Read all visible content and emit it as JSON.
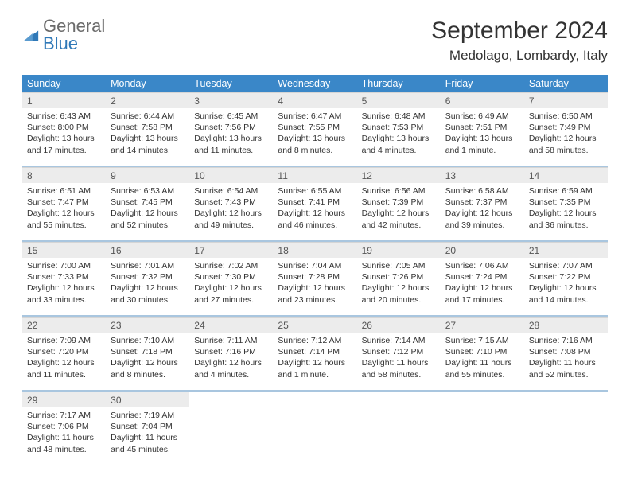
{
  "brand": {
    "part1": "General",
    "part2": "Blue"
  },
  "title": "September 2024",
  "location": "Medolago, Lombardy, Italy",
  "colors": {
    "header_bar": "#3a87c8",
    "daynum_bg": "#ececec",
    "week_divider": "#a9c6df",
    "logo_blue": "#2f78b7",
    "logo_gray": "#6b6b6b",
    "page_bg": "#ffffff",
    "text": "#333333"
  },
  "fonts": {
    "title_size": 30,
    "location_size": 17,
    "dow_size": 12.5,
    "daynum_size": 12,
    "body_size": 10.5
  },
  "dow": [
    "Sunday",
    "Monday",
    "Tuesday",
    "Wednesday",
    "Thursday",
    "Friday",
    "Saturday"
  ],
  "weeks": [
    {
      "nums": [
        "1",
        "2",
        "3",
        "4",
        "5",
        "6",
        "7"
      ],
      "cells": [
        {
          "sunrise": "Sunrise: 6:43 AM",
          "sunset": "Sunset: 8:00 PM",
          "day1": "Daylight: 13 hours",
          "day2": "and 17 minutes."
        },
        {
          "sunrise": "Sunrise: 6:44 AM",
          "sunset": "Sunset: 7:58 PM",
          "day1": "Daylight: 13 hours",
          "day2": "and 14 minutes."
        },
        {
          "sunrise": "Sunrise: 6:45 AM",
          "sunset": "Sunset: 7:56 PM",
          "day1": "Daylight: 13 hours",
          "day2": "and 11 minutes."
        },
        {
          "sunrise": "Sunrise: 6:47 AM",
          "sunset": "Sunset: 7:55 PM",
          "day1": "Daylight: 13 hours",
          "day2": "and 8 minutes."
        },
        {
          "sunrise": "Sunrise: 6:48 AM",
          "sunset": "Sunset: 7:53 PM",
          "day1": "Daylight: 13 hours",
          "day2": "and 4 minutes."
        },
        {
          "sunrise": "Sunrise: 6:49 AM",
          "sunset": "Sunset: 7:51 PM",
          "day1": "Daylight: 13 hours",
          "day2": "and 1 minute."
        },
        {
          "sunrise": "Sunrise: 6:50 AM",
          "sunset": "Sunset: 7:49 PM",
          "day1": "Daylight: 12 hours",
          "day2": "and 58 minutes."
        }
      ]
    },
    {
      "nums": [
        "8",
        "9",
        "10",
        "11",
        "12",
        "13",
        "14"
      ],
      "cells": [
        {
          "sunrise": "Sunrise: 6:51 AM",
          "sunset": "Sunset: 7:47 PM",
          "day1": "Daylight: 12 hours",
          "day2": "and 55 minutes."
        },
        {
          "sunrise": "Sunrise: 6:53 AM",
          "sunset": "Sunset: 7:45 PM",
          "day1": "Daylight: 12 hours",
          "day2": "and 52 minutes."
        },
        {
          "sunrise": "Sunrise: 6:54 AM",
          "sunset": "Sunset: 7:43 PM",
          "day1": "Daylight: 12 hours",
          "day2": "and 49 minutes."
        },
        {
          "sunrise": "Sunrise: 6:55 AM",
          "sunset": "Sunset: 7:41 PM",
          "day1": "Daylight: 12 hours",
          "day2": "and 46 minutes."
        },
        {
          "sunrise": "Sunrise: 6:56 AM",
          "sunset": "Sunset: 7:39 PM",
          "day1": "Daylight: 12 hours",
          "day2": "and 42 minutes."
        },
        {
          "sunrise": "Sunrise: 6:58 AM",
          "sunset": "Sunset: 7:37 PM",
          "day1": "Daylight: 12 hours",
          "day2": "and 39 minutes."
        },
        {
          "sunrise": "Sunrise: 6:59 AM",
          "sunset": "Sunset: 7:35 PM",
          "day1": "Daylight: 12 hours",
          "day2": "and 36 minutes."
        }
      ]
    },
    {
      "nums": [
        "15",
        "16",
        "17",
        "18",
        "19",
        "20",
        "21"
      ],
      "cells": [
        {
          "sunrise": "Sunrise: 7:00 AM",
          "sunset": "Sunset: 7:33 PM",
          "day1": "Daylight: 12 hours",
          "day2": "and 33 minutes."
        },
        {
          "sunrise": "Sunrise: 7:01 AM",
          "sunset": "Sunset: 7:32 PM",
          "day1": "Daylight: 12 hours",
          "day2": "and 30 minutes."
        },
        {
          "sunrise": "Sunrise: 7:02 AM",
          "sunset": "Sunset: 7:30 PM",
          "day1": "Daylight: 12 hours",
          "day2": "and 27 minutes."
        },
        {
          "sunrise": "Sunrise: 7:04 AM",
          "sunset": "Sunset: 7:28 PM",
          "day1": "Daylight: 12 hours",
          "day2": "and 23 minutes."
        },
        {
          "sunrise": "Sunrise: 7:05 AM",
          "sunset": "Sunset: 7:26 PM",
          "day1": "Daylight: 12 hours",
          "day2": "and 20 minutes."
        },
        {
          "sunrise": "Sunrise: 7:06 AM",
          "sunset": "Sunset: 7:24 PM",
          "day1": "Daylight: 12 hours",
          "day2": "and 17 minutes."
        },
        {
          "sunrise": "Sunrise: 7:07 AM",
          "sunset": "Sunset: 7:22 PM",
          "day1": "Daylight: 12 hours",
          "day2": "and 14 minutes."
        }
      ]
    },
    {
      "nums": [
        "22",
        "23",
        "24",
        "25",
        "26",
        "27",
        "28"
      ],
      "cells": [
        {
          "sunrise": "Sunrise: 7:09 AM",
          "sunset": "Sunset: 7:20 PM",
          "day1": "Daylight: 12 hours",
          "day2": "and 11 minutes."
        },
        {
          "sunrise": "Sunrise: 7:10 AM",
          "sunset": "Sunset: 7:18 PM",
          "day1": "Daylight: 12 hours",
          "day2": "and 8 minutes."
        },
        {
          "sunrise": "Sunrise: 7:11 AM",
          "sunset": "Sunset: 7:16 PM",
          "day1": "Daylight: 12 hours",
          "day2": "and 4 minutes."
        },
        {
          "sunrise": "Sunrise: 7:12 AM",
          "sunset": "Sunset: 7:14 PM",
          "day1": "Daylight: 12 hours",
          "day2": "and 1 minute."
        },
        {
          "sunrise": "Sunrise: 7:14 AM",
          "sunset": "Sunset: 7:12 PM",
          "day1": "Daylight: 11 hours",
          "day2": "and 58 minutes."
        },
        {
          "sunrise": "Sunrise: 7:15 AM",
          "sunset": "Sunset: 7:10 PM",
          "day1": "Daylight: 11 hours",
          "day2": "and 55 minutes."
        },
        {
          "sunrise": "Sunrise: 7:16 AM",
          "sunset": "Sunset: 7:08 PM",
          "day1": "Daylight: 11 hours",
          "day2": "and 52 minutes."
        }
      ]
    },
    {
      "nums": [
        "29",
        "30",
        "",
        "",
        "",
        "",
        ""
      ],
      "cells": [
        {
          "sunrise": "Sunrise: 7:17 AM",
          "sunset": "Sunset: 7:06 PM",
          "day1": "Daylight: 11 hours",
          "day2": "and 48 minutes."
        },
        {
          "sunrise": "Sunrise: 7:19 AM",
          "sunset": "Sunset: 7:04 PM",
          "day1": "Daylight: 11 hours",
          "day2": "and 45 minutes."
        },
        null,
        null,
        null,
        null,
        null
      ]
    }
  ]
}
